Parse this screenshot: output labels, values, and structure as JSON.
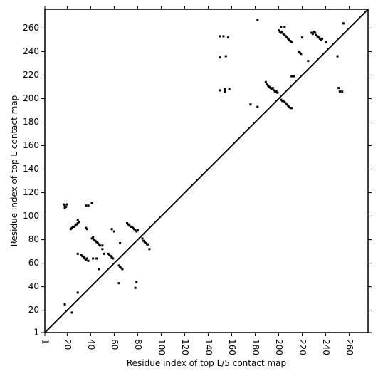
{
  "chart_data": {
    "type": "scatter",
    "xlabel": "Residue index of top L/5 contact map",
    "ylabel": "Residue index of top L contact map",
    "xlim": [
      1,
      276
    ],
    "ylim": [
      1,
      276
    ],
    "xticks": [
      1,
      20,
      40,
      60,
      80,
      100,
      120,
      140,
      160,
      180,
      200,
      220,
      240,
      260
    ],
    "yticks": [
      1,
      20,
      40,
      60,
      80,
      100,
      120,
      140,
      160,
      180,
      200,
      220,
      240,
      260
    ],
    "color": "#000000",
    "x": [
      18,
      19,
      17,
      18,
      20,
      23,
      24,
      25,
      26,
      27,
      28,
      29,
      30,
      29,
      32,
      33,
      34,
      35,
      36,
      37,
      38,
      36,
      37,
      36,
      38,
      41,
      41,
      42,
      43,
      44,
      45,
      46,
      47,
      48,
      42,
      45,
      47,
      50,
      50,
      51,
      55,
      56,
      57,
      58,
      59,
      58,
      60,
      64,
      65,
      66,
      67,
      64,
      65,
      71,
      72,
      73,
      74,
      75,
      76,
      77,
      78,
      79,
      80,
      84,
      85,
      86,
      87,
      88,
      89,
      90,
      79,
      78,
      29,
      18,
      24,
      29,
      150,
      153,
      157,
      150,
      155,
      150,
      154,
      154,
      158,
      176,
      182,
      182,
      189,
      190,
      191,
      192,
      193,
      194,
      195,
      196,
      197,
      198,
      199,
      200,
      201,
      202,
      203,
      204,
      205,
      206,
      207,
      208,
      209,
      210,
      211,
      202,
      205,
      202,
      203,
      204,
      205,
      206,
      207,
      208,
      209,
      210,
      211,
      211,
      213,
      217,
      218,
      219,
      220,
      225,
      228,
      229,
      230,
      231,
      232,
      233,
      234,
      235,
      236,
      237,
      240,
      250,
      251,
      252,
      254,
      255
    ],
    "values": [
      109,
      108,
      110,
      107,
      110,
      89,
      90,
      91,
      91,
      92,
      93,
      94,
      95,
      97,
      67,
      66,
      65,
      64,
      63,
      64,
      62,
      90,
      89,
      109,
      109,
      111,
      81,
      82,
      80,
      79,
      78,
      77,
      76,
      75,
      64,
      64,
      55,
      75,
      72,
      68,
      68,
      67,
      66,
      65,
      64,
      89,
      87,
      58,
      57,
      56,
      55,
      43,
      77,
      94,
      93,
      92,
      91,
      91,
      90,
      89,
      88,
      87,
      88,
      81,
      79,
      78,
      77,
      76,
      76,
      72,
      44,
      39,
      35,
      25,
      18,
      68,
      253,
      253,
      252,
      235,
      236,
      207,
      208,
      206,
      208,
      195,
      193,
      267,
      214,
      212,
      211,
      210,
      209,
      208,
      209,
      207,
      206,
      206,
      205,
      258,
      257,
      256,
      257,
      255,
      254,
      253,
      252,
      251,
      250,
      249,
      248,
      261,
      261,
      199,
      198,
      198,
      197,
      196,
      195,
      194,
      193,
      192,
      192,
      219,
      219,
      240,
      239,
      238,
      252,
      232,
      256,
      255,
      257,
      256,
      254,
      253,
      252,
      251,
      250,
      251,
      248,
      236,
      209,
      206,
      206,
      264
    ]
  }
}
